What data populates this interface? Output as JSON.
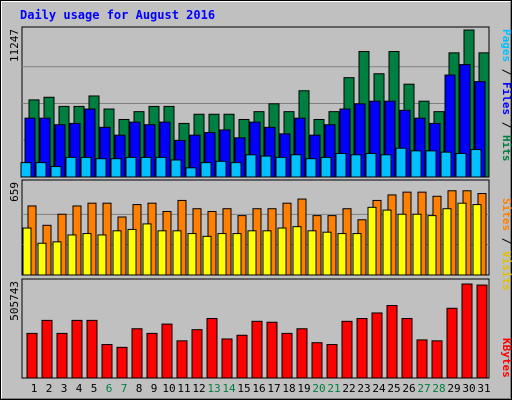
{
  "chart_data": [
    {
      "type": "bar",
      "title": "Daily usage for August 2016",
      "ylabel_max": "11247",
      "legend": [
        "Pages",
        "Files",
        "Hits"
      ],
      "categories": [
        "1",
        "2",
        "3",
        "4",
        "5",
        "6",
        "7",
        "8",
        "9",
        "10",
        "11",
        "12",
        "13",
        "14",
        "15",
        "16",
        "17",
        "18",
        "19",
        "20",
        "21",
        "22",
        "23",
        "24",
        "25",
        "26",
        "27",
        "28",
        "29",
        "30",
        "31"
      ],
      "weekend_days": [
        "6",
        "7",
        "13",
        "14",
        "20",
        "21",
        "27",
        "28"
      ],
      "ylim": [
        0,
        11247
      ],
      "series": [
        {
          "name": "Hits",
          "color": "#008040",
          "values": [
            5900,
            6100,
            5400,
            5400,
            6200,
            5200,
            4400,
            5000,
            5400,
            5400,
            4100,
            4800,
            4800,
            4800,
            4400,
            5000,
            5600,
            5000,
            6600,
            4400,
            5000,
            7600,
            9600,
            7900,
            9600,
            7100,
            5800,
            5000,
            9500,
            11247,
            9500
          ]
        },
        {
          "name": "Files",
          "color": "#0000ff",
          "values": [
            4500,
            4500,
            4000,
            4100,
            5200,
            3800,
            3200,
            4200,
            4000,
            4200,
            2800,
            3200,
            3400,
            3600,
            3000,
            4200,
            3800,
            3300,
            4500,
            3200,
            4000,
            5200,
            5600,
            5800,
            5800,
            5100,
            4500,
            4100,
            7800,
            8600,
            7300
          ]
        },
        {
          "name": "Pages",
          "color": "#00c0ff",
          "values": [
            1100,
            1100,
            800,
            1500,
            1500,
            1400,
            1400,
            1500,
            1500,
            1500,
            1300,
            700,
            1100,
            1200,
            1100,
            1700,
            1600,
            1500,
            1700,
            1400,
            1500,
            1800,
            1700,
            1800,
            1700,
            2200,
            2000,
            2000,
            1900,
            1800,
            2100
          ]
        }
      ]
    },
    {
      "type": "bar",
      "ylabel_max": "659",
      "legend": [
        "Sites",
        "Visits"
      ],
      "ylim": [
        0,
        659
      ],
      "series": [
        {
          "name": "Visits",
          "color": "#ff8000",
          "values": [
            500,
            360,
            440,
            500,
            520,
            520,
            420,
            510,
            520,
            460,
            540,
            480,
            460,
            480,
            430,
            480,
            480,
            520,
            550,
            430,
            430,
            480,
            400,
            540,
            580,
            600,
            600,
            570,
            610,
            610,
            590
          ]
        },
        {
          "name": "Sites",
          "color": "#ffff00",
          "values": [
            340,
            230,
            240,
            290,
            300,
            290,
            320,
            330,
            370,
            320,
            320,
            300,
            280,
            300,
            300,
            320,
            320,
            340,
            350,
            320,
            310,
            300,
            300,
            490,
            470,
            440,
            440,
            430,
            480,
            520,
            510
          ]
        }
      ]
    },
    {
      "type": "bar",
      "ylabel_max": "505743",
      "legend": [
        "KBytes"
      ],
      "ylim": [
        0,
        505743
      ],
      "series": [
        {
          "name": "KBytes",
          "color": "#ff0000",
          "values": [
            240000,
            310000,
            240000,
            310000,
            310000,
            180000,
            165000,
            265000,
            240000,
            290000,
            200000,
            260000,
            320000,
            210000,
            230000,
            305000,
            300000,
            240000,
            265000,
            190000,
            180000,
            305000,
            320000,
            350000,
            390000,
            320000,
            205000,
            200000,
            375000,
            505743,
            500000
          ]
        }
      ]
    }
  ],
  "colors": {
    "background": "#c0c0c0",
    "title": "#0000ff",
    "weekday_label": "#000000",
    "weekend_label": "#008040",
    "gridline": "#808080"
  }
}
